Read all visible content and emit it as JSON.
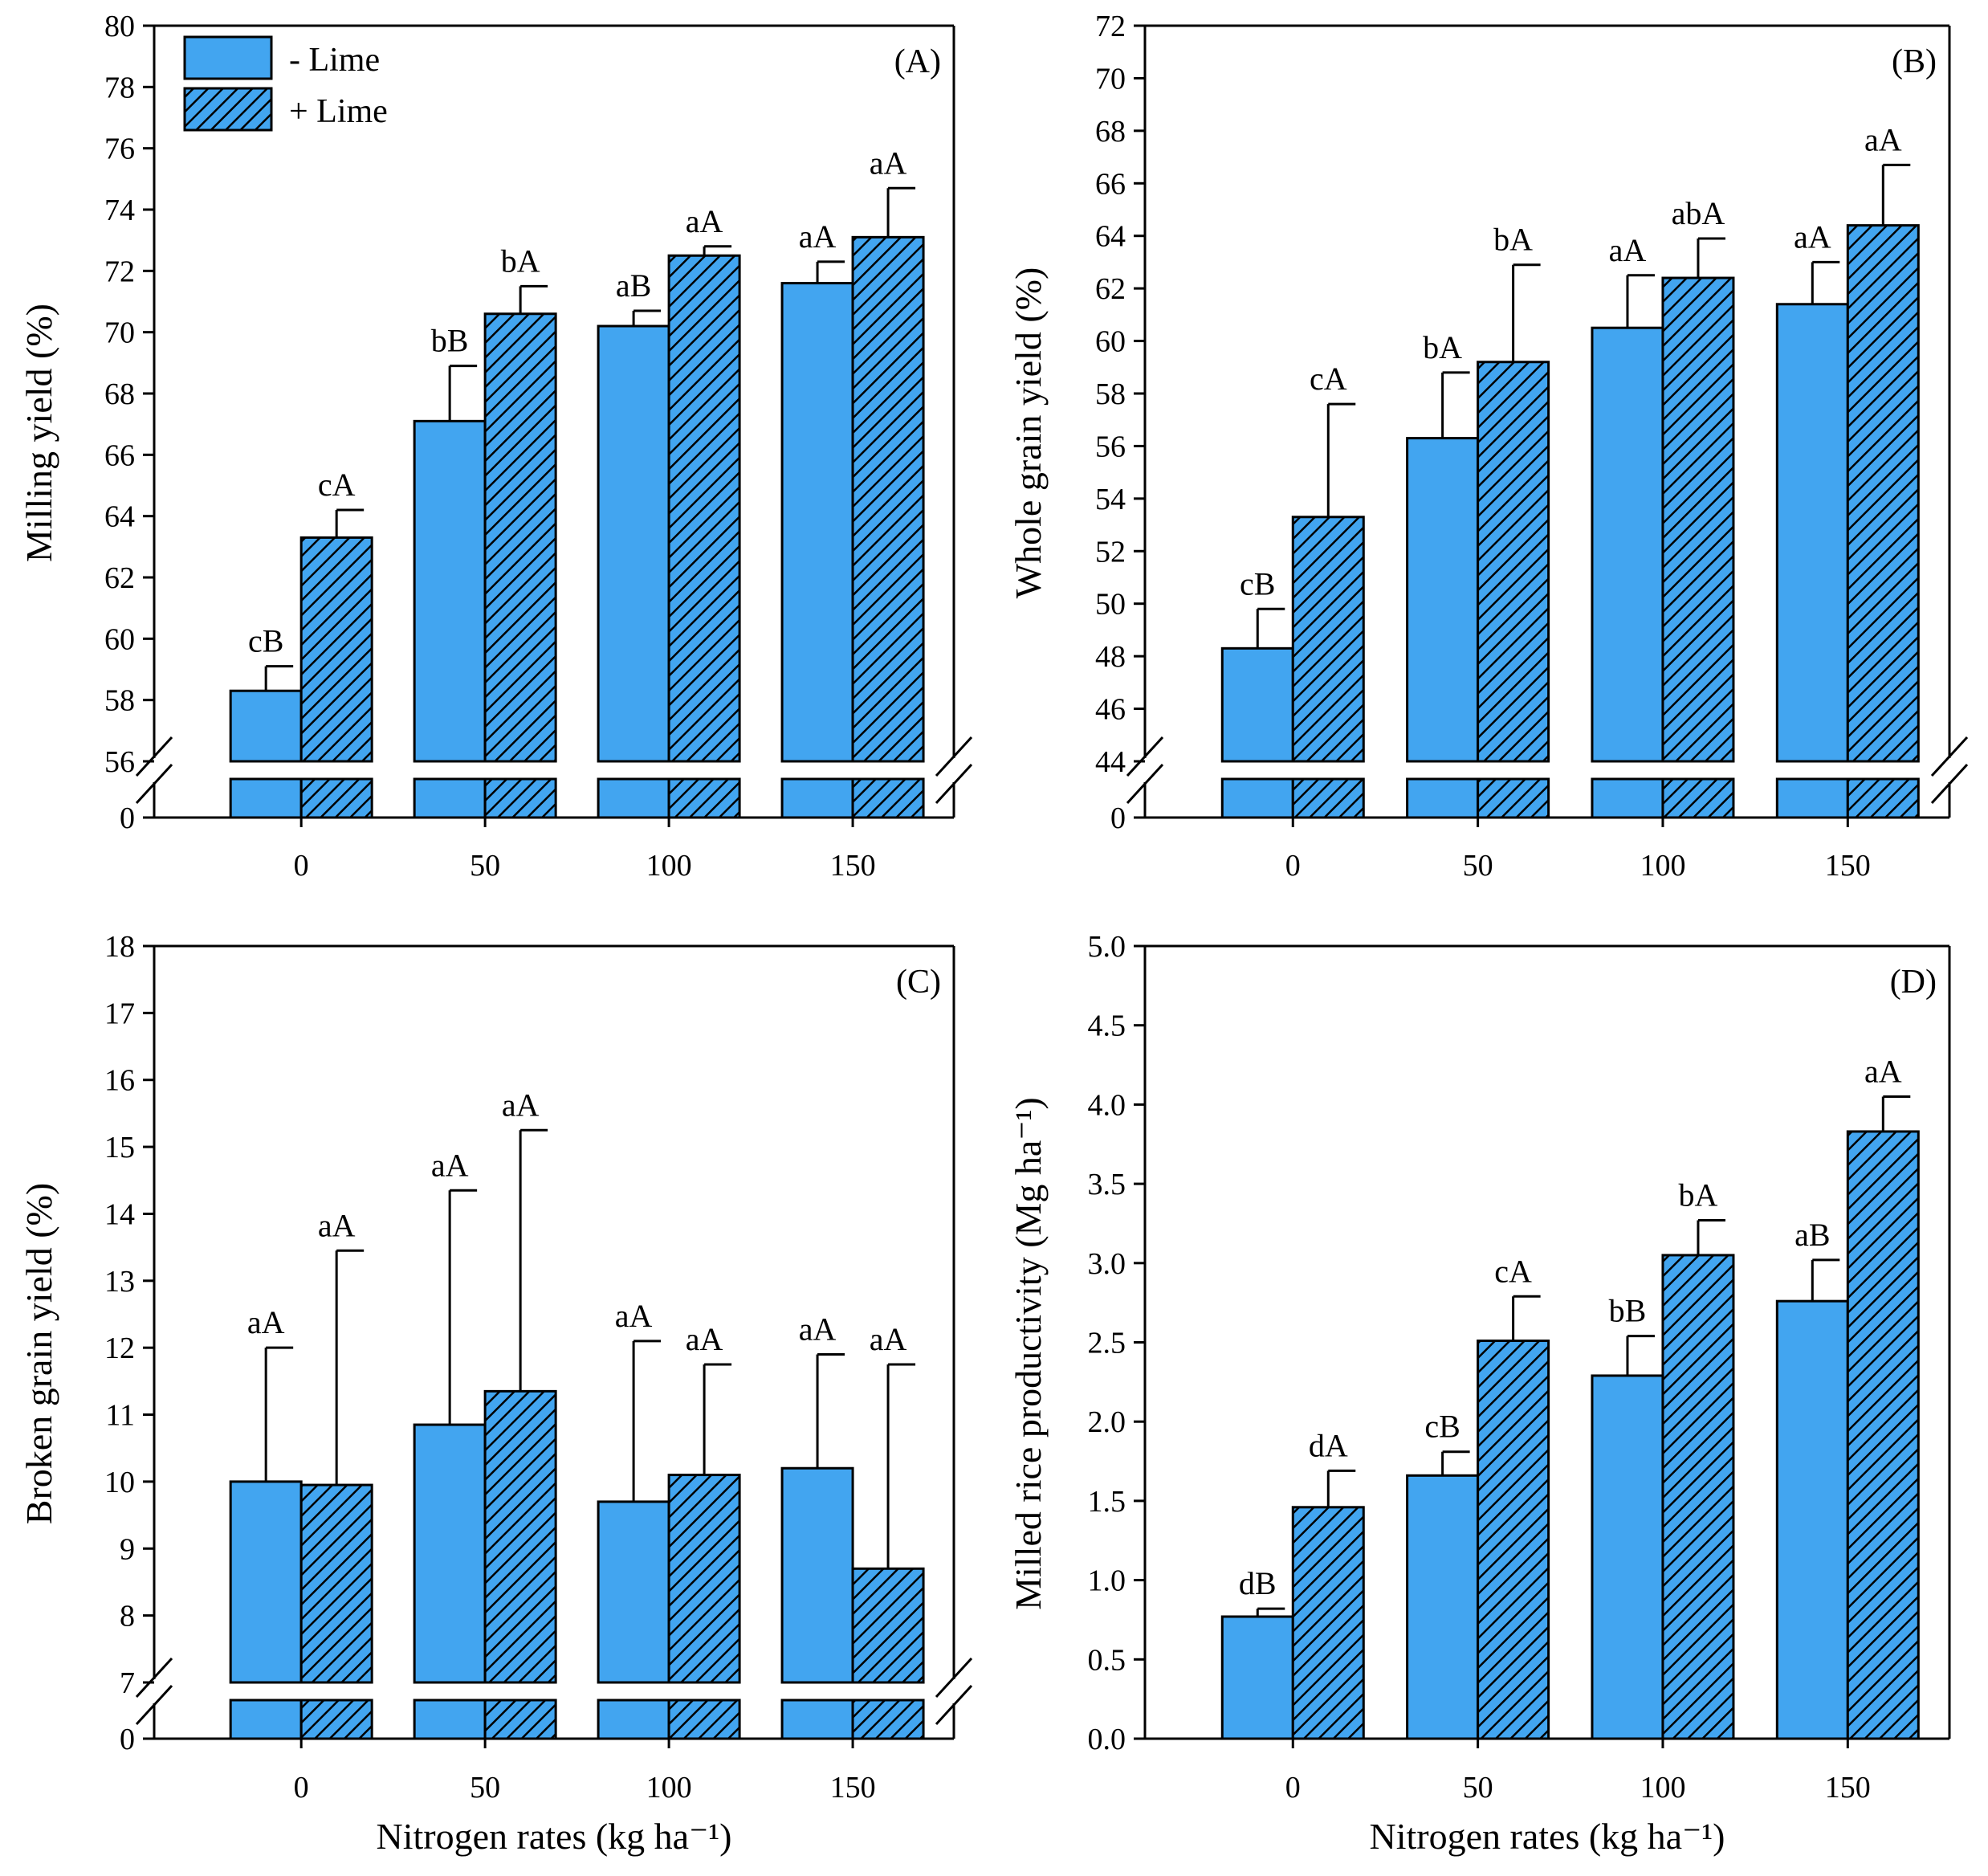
{
  "colors": {
    "bar_fill": "#42A5F0",
    "stroke": "#000000",
    "background": "#ffffff"
  },
  "legend": {
    "minus_lime": "- Lime",
    "plus_lime": "+ Lime"
  },
  "xlabel": "Nitrogen rates (kg ha⁻¹)",
  "chart_data": [
    {
      "id": "A",
      "panel_label": "(A)",
      "type": "bar",
      "ylabel": "Milling yield (%)",
      "categories": [
        "0",
        "50",
        "100",
        "150"
      ],
      "ylim": [
        56,
        80
      ],
      "yticks": [
        "56",
        "58",
        "60",
        "62",
        "64",
        "66",
        "68",
        "70",
        "72",
        "74",
        "76",
        "78",
        "80"
      ],
      "broken_axis_lower_tick": "0",
      "series": [
        {
          "name": "- Lime",
          "values": [
            58.3,
            67.1,
            70.2,
            71.6
          ],
          "errors": [
            0.8,
            1.8,
            0.5,
            0.7
          ],
          "labels": [
            "cB",
            "bB",
            "aB",
            "aA"
          ]
        },
        {
          "name": "+ Lime",
          "values": [
            63.3,
            70.6,
            72.5,
            73.1
          ],
          "errors": [
            0.9,
            0.9,
            0.3,
            1.6
          ],
          "labels": [
            "cA",
            "bA",
            "aA",
            "aA"
          ]
        }
      ]
    },
    {
      "id": "B",
      "panel_label": "(B)",
      "type": "bar",
      "ylabel": "Whole grain yield (%)",
      "categories": [
        "0",
        "50",
        "100",
        "150"
      ],
      "ylim": [
        44,
        72
      ],
      "yticks": [
        "44",
        "46",
        "48",
        "50",
        "52",
        "54",
        "56",
        "58",
        "60",
        "62",
        "64",
        "66",
        "68",
        "70",
        "72"
      ],
      "broken_axis_lower_tick": "0",
      "series": [
        {
          "name": "- Lime",
          "values": [
            48.3,
            56.3,
            60.5,
            61.4
          ],
          "errors": [
            1.5,
            2.5,
            2.0,
            1.6
          ],
          "labels": [
            "cB",
            "bA",
            "aA",
            "aA"
          ]
        },
        {
          "name": "+ Lime",
          "values": [
            53.3,
            59.2,
            62.4,
            64.4
          ],
          "errors": [
            4.3,
            3.7,
            1.5,
            2.3
          ],
          "labels": [
            "cA",
            "bA",
            "abA",
            "aA"
          ]
        }
      ]
    },
    {
      "id": "C",
      "panel_label": "(C)",
      "type": "bar",
      "ylabel": "Broken grain yield (%)",
      "categories": [
        "0",
        "50",
        "100",
        "150"
      ],
      "ylim": [
        7,
        18
      ],
      "yticks": [
        "7",
        "8",
        "9",
        "10",
        "11",
        "12",
        "13",
        "14",
        "15",
        "16",
        "17",
        "18"
      ],
      "broken_axis_lower_tick": "0",
      "series": [
        {
          "name": "- Lime",
          "values": [
            10.0,
            10.85,
            9.7,
            10.2
          ],
          "errors": [
            2.0,
            3.5,
            2.4,
            1.7
          ],
          "labels": [
            "aA",
            "aA",
            "aA",
            "aA"
          ]
        },
        {
          "name": "+ Lime",
          "values": [
            9.95,
            11.35,
            10.1,
            8.7
          ],
          "errors": [
            3.5,
            3.9,
            1.65,
            3.05
          ],
          "labels": [
            "aA",
            "aA",
            "aA",
            "aA"
          ]
        }
      ]
    },
    {
      "id": "D",
      "panel_label": "(D)",
      "type": "bar",
      "ylabel": "Milled rice productivity (Mg ha⁻¹)",
      "categories": [
        "0",
        "50",
        "100",
        "150"
      ],
      "ylim": [
        0,
        5
      ],
      "yticks": [
        "0.0",
        "0.5",
        "1.0",
        "1.5",
        "2.0",
        "2.5",
        "3.0",
        "3.5",
        "4.0",
        "4.5",
        "5.0"
      ],
      "series": [
        {
          "name": "- Lime",
          "values": [
            0.77,
            1.66,
            2.29,
            2.76
          ],
          "errors": [
            0.05,
            0.15,
            0.25,
            0.26
          ],
          "labels": [
            "dB",
            "cB",
            "bB",
            "aB"
          ]
        },
        {
          "name": "+ Lime",
          "values": [
            1.46,
            2.51,
            3.05,
            3.83
          ],
          "errors": [
            0.23,
            0.28,
            0.22,
            0.22
          ],
          "labels": [
            "dA",
            "cA",
            "bA",
            "aA"
          ]
        }
      ]
    }
  ]
}
